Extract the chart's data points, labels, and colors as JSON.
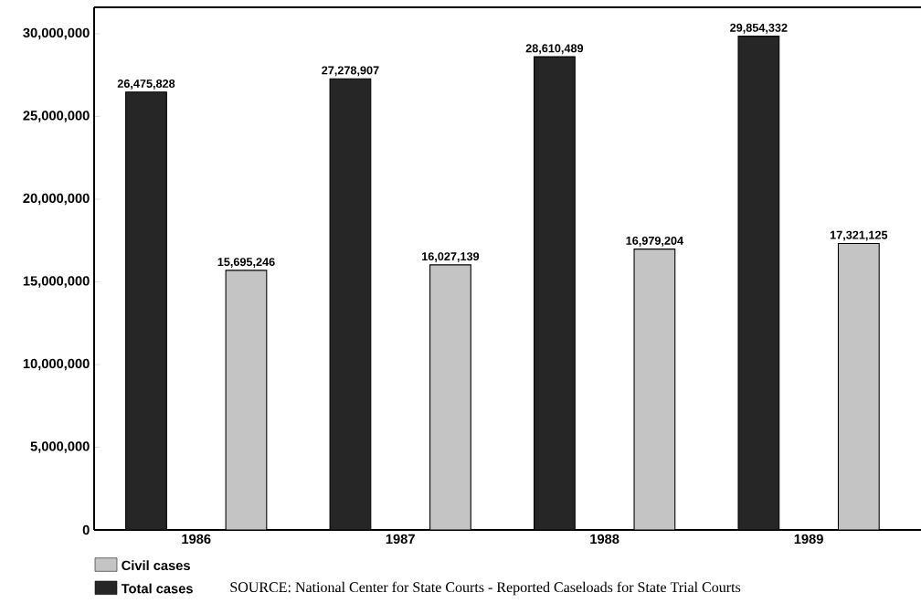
{
  "chart_data": {
    "type": "bar",
    "categories": [
      "1986",
      "1987",
      "1988",
      "1989"
    ],
    "series": [
      {
        "name": "Total cases",
        "color": "#262626",
        "values": [
          26475828,
          27278907,
          28610489,
          29854332
        ],
        "value_labels": [
          "26,475,828",
          "27,278,907",
          "28,610,489",
          "29,854,332"
        ]
      },
      {
        "name": "Civil cases",
        "color": "#c4c4c4",
        "values": [
          15695246,
          16027139,
          16979204,
          17321125
        ],
        "value_labels": [
          "15,695,246",
          "16,027,139",
          "16,979,204",
          "17,321,125"
        ]
      }
    ],
    "ylim": [
      0,
      31600000
    ],
    "yticks": [
      0,
      {
        "value": 5000000,
        "label": "5,000,000"
      },
      {
        "value": 10000000,
        "label": "10,000,000"
      },
      {
        "value": 15000000,
        "label": "15,000,000"
      },
      {
        "value": 20000000,
        "label": "20,000,000"
      },
      {
        "value": 25000000,
        "label": "25,000,000"
      },
      {
        "value": 30000000,
        "label": "30,000,000"
      }
    ],
    "grid": false,
    "legend": "bottom left",
    "annotations": [
      "SOURCE: National Center for State Courts - Reported Caseloads for State Trial Courts"
    ]
  }
}
